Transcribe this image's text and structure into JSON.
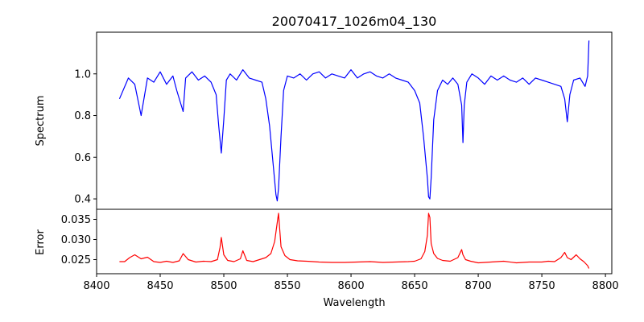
{
  "chart_data": [
    {
      "type": "line",
      "title": "20070417_1026m04_130",
      "xlabel": "",
      "ylabel": "Spectrum",
      "xlim": [
        8400,
        8805
      ],
      "ylim": [
        0.35,
        1.2
      ],
      "yticks": [
        0.4,
        0.6,
        0.8,
        1.0
      ],
      "ytick_labels": [
        "0.4",
        "0.6",
        "0.8",
        "1.0"
      ],
      "grid": false,
      "series": [
        {
          "color": "#0000ff",
          "x": [
            8418,
            8425,
            8430,
            8435,
            8440,
            8445,
            8450,
            8455,
            8460,
            8463,
            8466,
            8468,
            8470,
            8475,
            8480,
            8485,
            8490,
            8494,
            8496,
            8498,
            8500,
            8502,
            8505,
            8510,
            8515,
            8520,
            8525,
            8530,
            8533,
            8536,
            8539,
            8541,
            8542,
            8543,
            8545,
            8547,
            8550,
            8555,
            8560,
            8565,
            8570,
            8575,
            8580,
            8585,
            8590,
            8595,
            8600,
            8605,
            8610,
            8615,
            8620,
            8625,
            8630,
            8635,
            8640,
            8645,
            8650,
            8654,
            8657,
            8660,
            8661,
            8662,
            8663,
            8665,
            8668,
            8672,
            8676,
            8680,
            8684,
            8687,
            8688,
            8689,
            8691,
            8695,
            8700,
            8705,
            8710,
            8715,
            8720,
            8725,
            8730,
            8735,
            8740,
            8745,
            8750,
            8755,
            8760,
            8765,
            8768,
            8770,
            8772,
            8775,
            8780,
            8784,
            8786,
            8787
          ],
          "y": [
            0.88,
            0.98,
            0.95,
            0.8,
            0.98,
            0.96,
            1.01,
            0.95,
            0.99,
            0.92,
            0.86,
            0.82,
            0.98,
            1.01,
            0.97,
            0.99,
            0.96,
            0.9,
            0.75,
            0.62,
            0.78,
            0.97,
            1.0,
            0.97,
            1.02,
            0.98,
            0.97,
            0.96,
            0.88,
            0.75,
            0.55,
            0.42,
            0.39,
            0.45,
            0.7,
            0.92,
            0.99,
            0.98,
            1.0,
            0.97,
            1.0,
            1.01,
            0.98,
            1.0,
            0.99,
            0.98,
            1.02,
            0.98,
            1.0,
            1.01,
            0.99,
            0.98,
            1.0,
            0.98,
            0.97,
            0.96,
            0.92,
            0.86,
            0.7,
            0.5,
            0.41,
            0.4,
            0.5,
            0.78,
            0.92,
            0.97,
            0.95,
            0.98,
            0.95,
            0.85,
            0.67,
            0.85,
            0.96,
            1.0,
            0.98,
            0.95,
            0.99,
            0.97,
            0.99,
            0.97,
            0.96,
            0.98,
            0.95,
            0.98,
            0.97,
            0.96,
            0.95,
            0.94,
            0.88,
            0.77,
            0.9,
            0.97,
            0.98,
            0.94,
            0.99,
            1.16
          ]
        }
      ]
    },
    {
      "type": "line",
      "title": "",
      "xlabel": "Wavelength",
      "ylabel": "Error",
      "xlim": [
        8400,
        8805
      ],
      "ylim": [
        0.0215,
        0.0375
      ],
      "xticks": [
        8400,
        8450,
        8500,
        8550,
        8600,
        8650,
        8700,
        8750,
        8800
      ],
      "xtick_labels": [
        "8400",
        "8450",
        "8500",
        "8550",
        "8600",
        "8650",
        "8700",
        "8750",
        "8800"
      ],
      "yticks": [
        0.025,
        0.03,
        0.035
      ],
      "ytick_labels": [
        "0.025",
        "0.030",
        "0.035"
      ],
      "grid": false,
      "series": [
        {
          "color": "#ff0000",
          "x": [
            8418,
            8422,
            8426,
            8430,
            8435,
            8440,
            8445,
            8450,
            8455,
            8460,
            8465,
            8468,
            8472,
            8478,
            8484,
            8490,
            8495,
            8497,
            8498,
            8500,
            8503,
            8508,
            8513,
            8515,
            8518,
            8523,
            8528,
            8533,
            8537,
            8540,
            8542,
            8543,
            8545,
            8548,
            8552,
            8558,
            8565,
            8575,
            8585,
            8595,
            8605,
            8615,
            8625,
            8635,
            8645,
            8650,
            8655,
            8658,
            8660,
            8661,
            8662,
            8663,
            8665,
            8668,
            8672,
            8678,
            8684,
            8687,
            8688,
            8690,
            8694,
            8700,
            8710,
            8720,
            8730,
            8740,
            8750,
            8755,
            8760,
            8765,
            8768,
            8770,
            8773,
            8777,
            8780,
            8783,
            8786,
            8787
          ],
          "y": [
            0.0245,
            0.0245,
            0.0255,
            0.0262,
            0.0252,
            0.0256,
            0.0245,
            0.0243,
            0.0246,
            0.0243,
            0.0247,
            0.0265,
            0.025,
            0.0244,
            0.0246,
            0.0245,
            0.025,
            0.028,
            0.0305,
            0.0262,
            0.0248,
            0.0245,
            0.0252,
            0.0272,
            0.0248,
            0.0245,
            0.025,
            0.0255,
            0.0265,
            0.0295,
            0.0342,
            0.0365,
            0.0282,
            0.026,
            0.025,
            0.0247,
            0.0246,
            0.0244,
            0.0243,
            0.0243,
            0.0244,
            0.0245,
            0.0243,
            0.0244,
            0.0245,
            0.0246,
            0.0252,
            0.027,
            0.031,
            0.0365,
            0.0355,
            0.029,
            0.0265,
            0.0253,
            0.0248,
            0.0246,
            0.0255,
            0.0275,
            0.0262,
            0.025,
            0.0246,
            0.0242,
            0.0244,
            0.0246,
            0.0242,
            0.0244,
            0.0244,
            0.0246,
            0.0245,
            0.0255,
            0.0268,
            0.0255,
            0.025,
            0.0262,
            0.0252,
            0.0245,
            0.0235,
            0.0228
          ]
        }
      ]
    }
  ]
}
